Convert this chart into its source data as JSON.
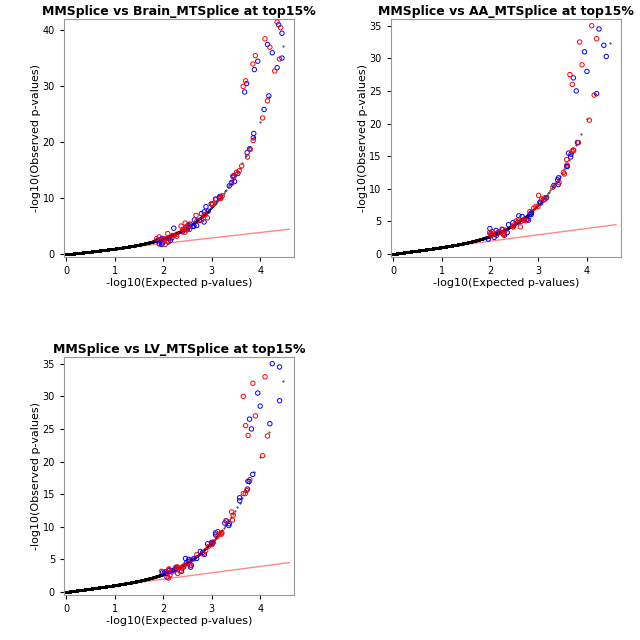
{
  "plots": [
    {
      "title": "MMSplice vs Brain_MTSplice at top15%",
      "xlim": [
        -0.05,
        4.7
      ],
      "ylim": [
        -0.5,
        42
      ],
      "xticks": [
        0,
        1,
        2,
        3,
        4
      ],
      "yticks": [
        0,
        10,
        20,
        30,
        40
      ],
      "max_x": 4.6,
      "max_y": 41.5,
      "diag_end_y": 4.5,
      "red_top_x": [
        4.35,
        4.42,
        4.1,
        4.2,
        3.9,
        3.85,
        3.7,
        3.65
      ],
      "red_top_y": [
        41.5,
        40.5,
        38.5,
        37.0,
        35.5,
        34.0,
        31.0,
        30.0
      ],
      "blue_top_x": [
        4.38,
        4.45,
        4.15,
        4.25,
        3.95,
        3.88,
        3.72,
        3.68
      ],
      "blue_top_y": [
        41.0,
        39.5,
        37.5,
        36.0,
        34.5,
        33.0,
        30.5,
        29.0
      ]
    },
    {
      "title": "MMSplice vs AA_MTSplice at top15%",
      "xlim": [
        -0.05,
        4.7
      ],
      "ylim": [
        -0.5,
        36
      ],
      "xticks": [
        0,
        1,
        2,
        3,
        4
      ],
      "yticks": [
        0,
        5,
        10,
        15,
        20,
        25,
        30,
        35
      ],
      "max_x": 4.6,
      "max_y": 36.0,
      "diag_end_y": 4.5,
      "red_top_x": [
        4.1,
        4.2,
        3.85,
        3.9,
        3.65,
        3.7
      ],
      "red_top_y": [
        35.0,
        33.0,
        32.5,
        29.0,
        27.5,
        26.0
      ],
      "blue_top_x": [
        4.25,
        4.35,
        3.95,
        4.0,
        3.72,
        3.78
      ],
      "blue_top_y": [
        34.5,
        32.0,
        31.0,
        28.0,
        27.0,
        25.0
      ]
    },
    {
      "title": "MMSplice vs LV_MTSplice at top15%",
      "xlim": [
        -0.05,
        4.7
      ],
      "ylim": [
        -0.5,
        36
      ],
      "xticks": [
        0,
        1,
        2,
        3,
        4
      ],
      "yticks": [
        0,
        5,
        10,
        15,
        20,
        25,
        30,
        35
      ],
      "max_x": 4.6,
      "max_y": 36.0,
      "diag_end_y": 4.5,
      "red_top_x": [
        4.1,
        3.85,
        3.65,
        3.9,
        3.7,
        3.75
      ],
      "red_top_y": [
        33.0,
        32.0,
        30.0,
        27.0,
        25.5,
        24.0
      ],
      "blue_top_x": [
        4.25,
        4.4,
        3.95,
        4.0,
        3.78,
        3.82
      ],
      "blue_top_y": [
        35.0,
        34.5,
        30.5,
        28.5,
        26.5,
        25.0
      ]
    }
  ],
  "xlabel": "-log10(Expected p-values)",
  "ylabel": "-log10(Observed p-values)",
  "bg_color": "#ffffff",
  "black_dot_color": "#000000",
  "red_dot_color": "#ff0000",
  "blue_dot_color": "#0000ff",
  "diag_line_color": "#ff8888",
  "title_fontsize": 9,
  "axis_label_fontsize": 8,
  "tick_fontsize": 7
}
